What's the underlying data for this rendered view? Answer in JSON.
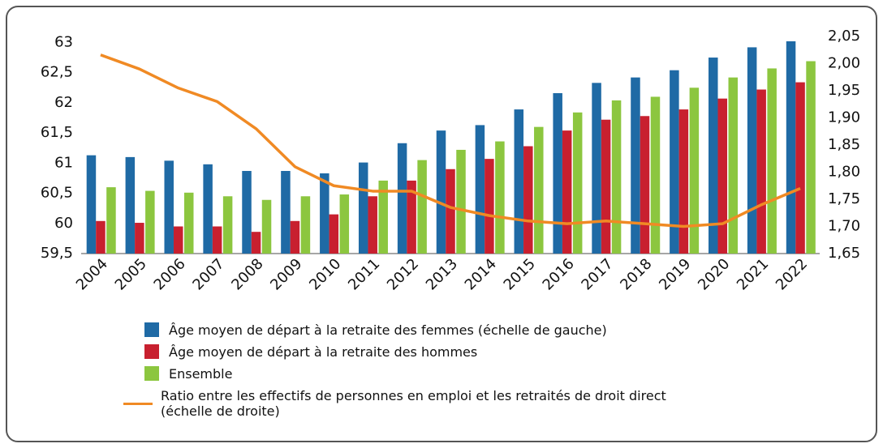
{
  "chart_data": {
    "type": "bar",
    "categories": [
      "2004",
      "2005",
      "2006",
      "2007",
      "2008",
      "2009",
      "2010",
      "2011",
      "2012",
      "2013",
      "2014",
      "2015",
      "2016",
      "2017",
      "2018",
      "2019",
      "2020",
      "2021",
      "2022"
    ],
    "series": [
      {
        "name": "Âge moyen de départ à la retraite des femmes (échelle de gauche)",
        "color": "#1f6aa5",
        "values": [
          61.13,
          61.1,
          61.04,
          60.98,
          60.87,
          60.87,
          60.83,
          61.01,
          61.33,
          61.54,
          61.63,
          61.89,
          62.16,
          62.33,
          62.42,
          62.54,
          62.75,
          62.92,
          63.02
        ]
      },
      {
        "name": "Âge moyen de départ à la retraite des hommes",
        "color": "#c8202f",
        "values": [
          60.04,
          60.01,
          59.95,
          59.95,
          59.86,
          60.04,
          60.15,
          60.45,
          60.71,
          60.9,
          61.07,
          61.28,
          61.54,
          61.72,
          61.78,
          61.89,
          62.07,
          62.22,
          62.34
        ]
      },
      {
        "name": "Ensemble",
        "color": "#8cc63f",
        "values": [
          60.6,
          60.54,
          60.51,
          60.45,
          60.39,
          60.45,
          60.48,
          60.71,
          61.05,
          61.22,
          61.36,
          61.6,
          61.84,
          62.04,
          62.1,
          62.25,
          62.42,
          62.57,
          62.69
        ]
      },
      {
        "name": "Ratio entre les effectifs de personnes en emploi et les retraités de droit direct (échelle de droite)",
        "color": "#f08a24",
        "type": "line",
        "axis": "y2",
        "values": [
          2.016,
          1.99,
          1.955,
          1.93,
          1.88,
          1.81,
          1.775,
          1.765,
          1.765,
          1.735,
          1.72,
          1.71,
          1.705,
          1.71,
          1.705,
          1.7,
          1.705,
          1.74,
          1.77
        ]
      }
    ],
    "ylim": [
      59.5,
      63.1
    ],
    "yticks": [
      {
        "value": 59.5,
        "label": "59,5"
      },
      60,
      {
        "value": 60.5,
        "label": "60,5"
      },
      61,
      {
        "value": 61.5,
        "label": "61,5"
      },
      62,
      {
        "value": 62.5,
        "label": "62,5"
      },
      63
    ],
    "y2lim": [
      1.65,
      2.05
    ],
    "y2ticks": [
      {
        "value": 1.65,
        "label": "1,65"
      },
      {
        "value": 1.7,
        "label": "1,70"
      },
      {
        "value": 1.75,
        "label": "1,75"
      },
      {
        "value": 1.8,
        "label": "1,80"
      },
      {
        "value": 1.85,
        "label": "1,85"
      },
      {
        "value": 1.9,
        "label": "1,90"
      },
      {
        "value": 1.95,
        "label": "1,95"
      },
      {
        "value": 2.0,
        "label": "2,00"
      },
      {
        "value": 2.05,
        "label": "2,05"
      }
    ],
    "grid": false
  }
}
